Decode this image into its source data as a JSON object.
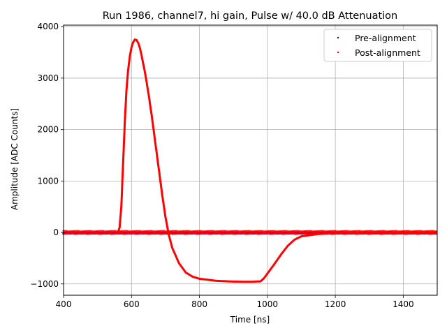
{
  "chart_data": {
    "type": "scatter",
    "title": "Run 1986, channel7, hi gain, Pulse w/ 40.0 dB Attenuation",
    "xlabel": "Time [ns]",
    "ylabel": "Amplitude [ADC Counts]",
    "xlim": [
      400,
      1500
    ],
    "ylim": [
      -1220,
      4030
    ],
    "xticks": [
      400,
      600,
      800,
      1000,
      1200,
      1400
    ],
    "yticks": [
      -1000,
      0,
      1000,
      2000,
      3000,
      4000
    ],
    "grid": true,
    "legend_position": "top-right",
    "series": [
      {
        "name": "Pre-alignment",
        "color": "#0000ff",
        "marker": "point",
        "baseline_bands": [
          0,
          -15
        ],
        "pulse": [
          [
            560,
            0
          ],
          [
            565,
            100
          ],
          [
            570,
            500
          ],
          [
            575,
            1300
          ],
          [
            580,
            2100
          ],
          [
            585,
            2750
          ],
          [
            590,
            3150
          ],
          [
            595,
            3420
          ],
          [
            600,
            3600
          ],
          [
            605,
            3700
          ],
          [
            610,
            3750
          ],
          [
            615,
            3740
          ],
          [
            620,
            3680
          ],
          [
            625,
            3580
          ],
          [
            630,
            3430
          ],
          [
            640,
            3100
          ],
          [
            650,
            2700
          ],
          [
            660,
            2250
          ],
          [
            670,
            1750
          ],
          [
            680,
            1250
          ],
          [
            690,
            750
          ],
          [
            700,
            300
          ],
          [
            710,
            -50
          ],
          [
            720,
            -300
          ],
          [
            740,
            -600
          ],
          [
            760,
            -780
          ],
          [
            780,
            -860
          ],
          [
            800,
            -900
          ],
          [
            850,
            -940
          ],
          [
            900,
            -955
          ],
          [
            950,
            -960
          ],
          [
            980,
            -950
          ],
          [
            990,
            -890
          ],
          [
            1000,
            -800
          ],
          [
            1020,
            -620
          ],
          [
            1040,
            -430
          ],
          [
            1060,
            -260
          ],
          [
            1080,
            -140
          ],
          [
            1100,
            -75
          ],
          [
            1150,
            -30
          ],
          [
            1200,
            -15
          ],
          [
            1300,
            -10
          ],
          [
            1500,
            -5
          ]
        ]
      },
      {
        "name": "Post-alignment",
        "color": "#ff0000",
        "marker": "point",
        "baseline_bands": [
          20,
          -20
        ],
        "pulse": [
          [
            560,
            0
          ],
          [
            565,
            100
          ],
          [
            570,
            500
          ],
          [
            575,
            1300
          ],
          [
            580,
            2100
          ],
          [
            585,
            2750
          ],
          [
            590,
            3150
          ],
          [
            595,
            3420
          ],
          [
            600,
            3600
          ],
          [
            605,
            3700
          ],
          [
            610,
            3750
          ],
          [
            615,
            3740
          ],
          [
            620,
            3680
          ],
          [
            625,
            3580
          ],
          [
            630,
            3430
          ],
          [
            640,
            3100
          ],
          [
            650,
            2700
          ],
          [
            660,
            2250
          ],
          [
            670,
            1750
          ],
          [
            680,
            1250
          ],
          [
            690,
            750
          ],
          [
            700,
            300
          ],
          [
            710,
            -50
          ],
          [
            720,
            -300
          ],
          [
            740,
            -600
          ],
          [
            760,
            -780
          ],
          [
            780,
            -860
          ],
          [
            800,
            -900
          ],
          [
            850,
            -940
          ],
          [
            900,
            -955
          ],
          [
            950,
            -960
          ],
          [
            980,
            -950
          ],
          [
            990,
            -890
          ],
          [
            1000,
            -800
          ],
          [
            1020,
            -620
          ],
          [
            1040,
            -430
          ],
          [
            1060,
            -260
          ],
          [
            1080,
            -140
          ],
          [
            1100,
            -75
          ],
          [
            1150,
            -30
          ],
          [
            1200,
            -15
          ],
          [
            1300,
            -10
          ],
          [
            1500,
            -5
          ]
        ]
      }
    ]
  }
}
